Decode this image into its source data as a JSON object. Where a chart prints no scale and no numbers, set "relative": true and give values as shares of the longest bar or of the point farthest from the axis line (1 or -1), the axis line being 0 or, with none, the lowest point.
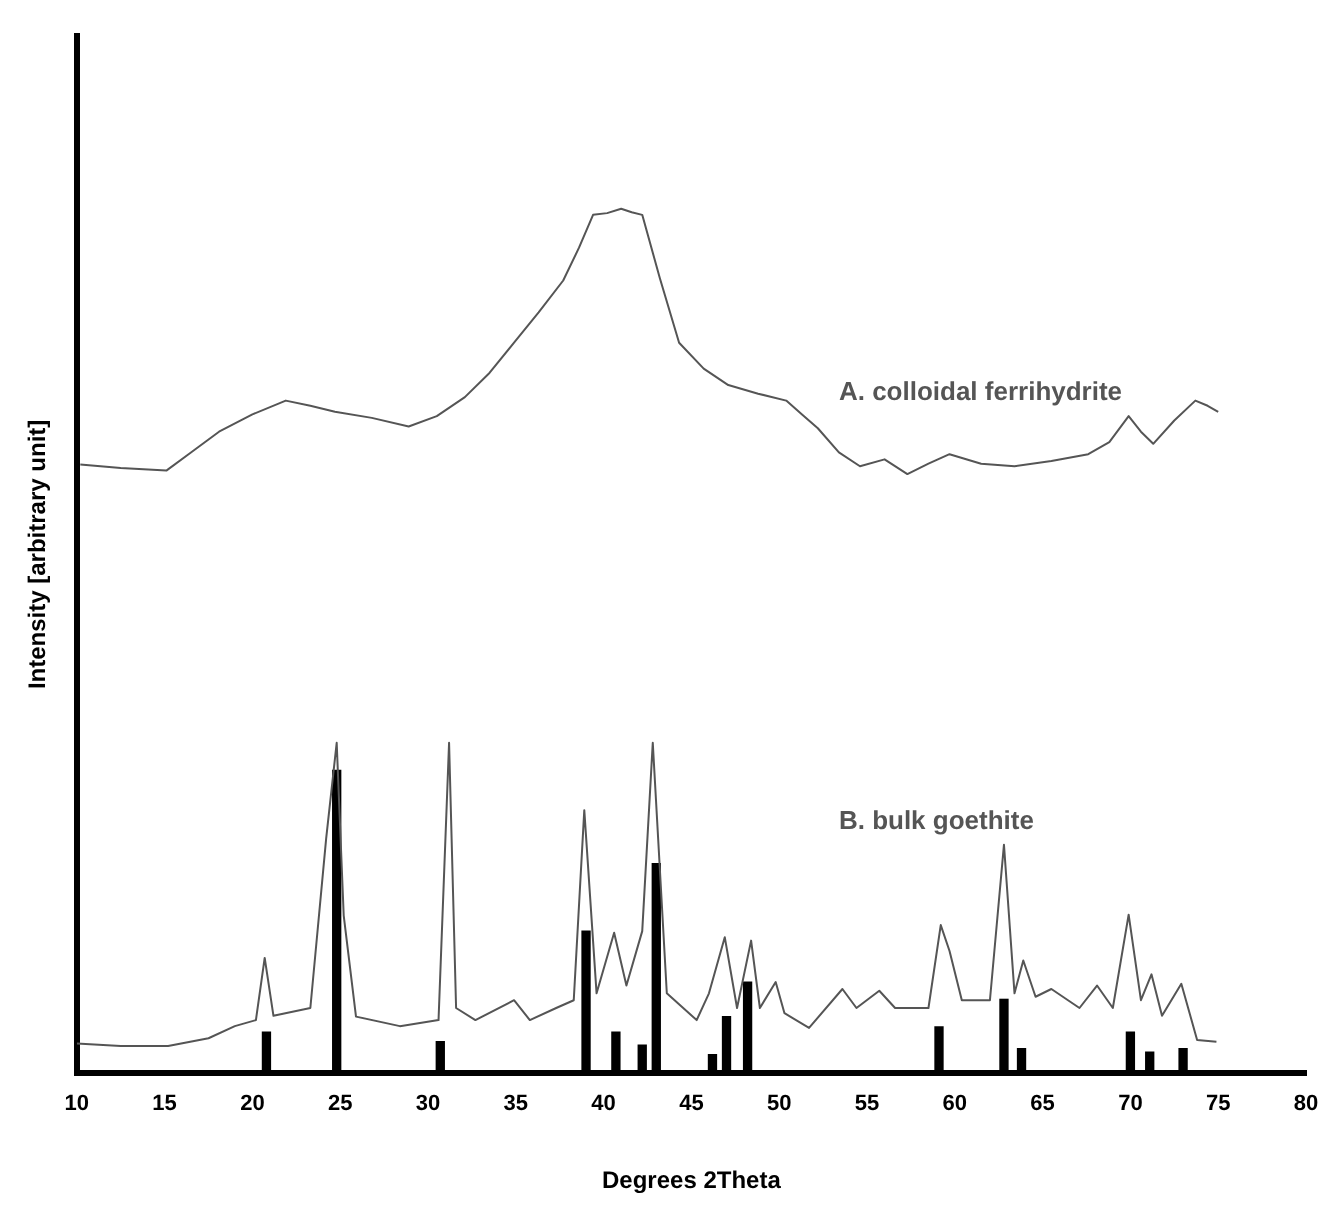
{
  "chart_data": {
    "type": "line",
    "relative": true,
    "xlabel": "Degrees 2Theta",
    "ylabel": "Intensity [arbitrary unit]",
    "xlim": [
      10,
      80
    ],
    "xticks": [
      10,
      15,
      20,
      25,
      30,
      35,
      40,
      45,
      50,
      55,
      60,
      65,
      70,
      75,
      80
    ],
    "grid": false,
    "legend": false,
    "marker": "none",
    "series": [
      {
        "name": "A. colloidal ferrihydrite",
        "color": "#555555",
        "x": [
          10.2,
          12.5,
          15.1,
          16.5,
          18.1,
          20.0,
          21.9,
          23.3,
          24.7,
          26.8,
          28.9,
          30.5,
          32.1,
          33.5,
          34.9,
          36.3,
          37.7,
          38.6,
          39.4,
          40.2,
          41.0,
          41.6,
          42.2,
          43.2,
          44.3,
          45.7,
          47.1,
          48.8,
          50.4,
          51.3,
          52.2,
          53.4,
          54.6,
          56.0,
          57.3,
          58.5,
          59.7,
          61.5,
          63.4,
          65.5,
          67.6,
          68.8,
          69.9,
          70.6,
          71.3,
          72.5,
          73.7,
          74.4,
          75.0
        ],
        "values": [
          0.704,
          0.7,
          0.697,
          0.718,
          0.742,
          0.762,
          0.778,
          0.772,
          0.765,
          0.758,
          0.748,
          0.76,
          0.782,
          0.81,
          0.845,
          0.88,
          0.917,
          0.955,
          0.993,
          0.995,
          1.0,
          0.996,
          0.993,
          0.92,
          0.845,
          0.815,
          0.796,
          0.786,
          0.778,
          0.762,
          0.746,
          0.718,
          0.702,
          0.71,
          0.693,
          0.705,
          0.716,
          0.705,
          0.702,
          0.708,
          0.716,
          0.73,
          0.76,
          0.742,
          0.728,
          0.755,
          0.778,
          0.772,
          0.765
        ]
      },
      {
        "name": "B. bulk goethite",
        "color": "#555555",
        "x": [
          10.0,
          12.5,
          15.2,
          17.5,
          19.0,
          20.2,
          20.7,
          21.2,
          23.3,
          24.2,
          24.8,
          25.2,
          25.9,
          28.4,
          30.6,
          31.2,
          31.6,
          32.7,
          34.9,
          35.8,
          37.3,
          38.3,
          38.9,
          39.6,
          40.6,
          41.3,
          42.2,
          42.8,
          43.6,
          45.3,
          46.0,
          46.9,
          47.6,
          48.4,
          48.9,
          49.8,
          50.3,
          51.7,
          53.6,
          54.4,
          55.7,
          56.6,
          58.5,
          59.2,
          59.7,
          60.4,
          62.0,
          62.8,
          63.4,
          63.9,
          64.6,
          65.5,
          67.1,
          68.1,
          69.0,
          69.9,
          70.6,
          71.2,
          71.8,
          72.9,
          73.8,
          74.9
        ],
        "values": [
          0.034,
          0.031,
          0.031,
          0.04,
          0.054,
          0.061,
          0.133,
          0.066,
          0.075,
          0.271,
          0.382,
          0.182,
          0.065,
          0.054,
          0.061,
          0.382,
          0.075,
          0.061,
          0.084,
          0.061,
          0.075,
          0.084,
          0.304,
          0.092,
          0.162,
          0.101,
          0.164,
          0.382,
          0.092,
          0.061,
          0.092,
          0.157,
          0.075,
          0.153,
          0.075,
          0.105,
          0.069,
          0.052,
          0.097,
          0.075,
          0.095,
          0.075,
          0.075,
          0.171,
          0.141,
          0.084,
          0.084,
          0.264,
          0.092,
          0.13,
          0.088,
          0.097,
          0.075,
          0.101,
          0.075,
          0.183,
          0.084,
          0.114,
          0.066,
          0.103,
          0.038,
          0.036
        ]
      },
      {
        "type": "bar",
        "color": "#000000",
        "x": [
          20.8,
          24.8,
          30.7,
          39.0,
          40.7,
          42.2,
          43.0,
          46.2,
          47.0,
          48.2,
          59.1,
          62.8,
          63.8,
          70.0,
          71.1,
          73.0
        ],
        "values": [
          0.047,
          0.35,
          0.036,
          0.164,
          0.047,
          0.032,
          0.242,
          0.021,
          0.065,
          0.105,
          0.053,
          0.085,
          0.028,
          0.047,
          0.024,
          0.028
        ]
      }
    ]
  }
}
